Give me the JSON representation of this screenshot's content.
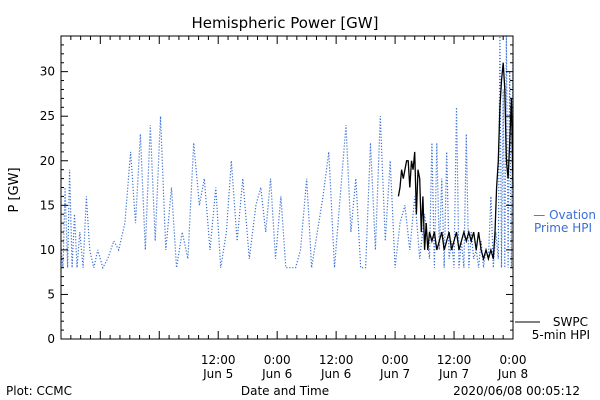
{
  "chart_data": {
    "type": "line",
    "title": "Hemispheric Power [GW]",
    "xlabel": "Date and Time",
    "ylabel": "P [GW]",
    "x_domain": [
      "2020-06-04T04:00",
      "2020-06-08T00:00"
    ],
    "ylim": [
      0,
      34
    ],
    "y_ticks": [
      0,
      5,
      10,
      15,
      20,
      25,
      30
    ],
    "x_ticks": [
      {
        "t": "2020-06-05T12:00",
        "top": "12:00",
        "bottom": "Jun 5"
      },
      {
        "t": "2020-06-06T00:00",
        "top": "0:00",
        "bottom": "Jun 6"
      },
      {
        "t": "2020-06-06T12:00",
        "top": "12:00",
        "bottom": "Jun 6"
      },
      {
        "t": "2020-06-07T00:00",
        "top": "0:00",
        "bottom": "Jun 7"
      },
      {
        "t": "2020-06-07T12:00",
        "top": "12:00",
        "bottom": "Jun 7"
      },
      {
        "t": "2020-06-08T00:00",
        "top": "0:00",
        "bottom": "Jun 8"
      }
    ],
    "grid": false,
    "series": [
      {
        "name": "Ovation Prime HPI",
        "legend_lines": [
          "— Ovation",
          "Prime HPI"
        ],
        "color": "#3a6fd6",
        "style": "dotted",
        "points": [
          [
            "2020-06-04T04:00",
            10
          ],
          [
            "2020-06-04T04:25",
            8
          ],
          [
            "2020-06-04T04:50",
            17
          ],
          [
            "2020-06-04T05:20",
            8
          ],
          [
            "2020-06-04T05:45",
            19
          ],
          [
            "2020-06-04T06:15",
            8
          ],
          [
            "2020-06-04T06:45",
            14
          ],
          [
            "2020-06-04T07:15",
            8
          ],
          [
            "2020-06-04T07:50",
            12
          ],
          [
            "2020-06-04T08:30",
            8
          ],
          [
            "2020-06-04T09:10",
            16
          ],
          [
            "2020-06-04T09:50",
            10
          ],
          [
            "2020-06-04T10:40",
            8
          ],
          [
            "2020-06-04T11:30",
            10
          ],
          [
            "2020-06-04T12:30",
            8
          ],
          [
            "2020-06-04T13:30",
            9
          ],
          [
            "2020-06-04T14:45",
            11
          ],
          [
            "2020-06-04T15:45",
            10
          ],
          [
            "2020-06-04T17:00",
            13
          ],
          [
            "2020-06-04T18:10",
            21
          ],
          [
            "2020-06-04T19:10",
            13
          ],
          [
            "2020-06-04T20:10",
            23
          ],
          [
            "2020-06-04T21:10",
            10
          ],
          [
            "2020-06-04T22:10",
            24
          ],
          [
            "2020-06-04T23:10",
            11
          ],
          [
            "2020-06-05T00:15",
            25
          ],
          [
            "2020-06-05T01:20",
            10
          ],
          [
            "2020-06-05T02:30",
            17
          ],
          [
            "2020-06-05T03:30",
            8
          ],
          [
            "2020-06-05T04:40",
            12
          ],
          [
            "2020-06-05T05:50",
            9
          ],
          [
            "2020-06-05T07:00",
            22
          ],
          [
            "2020-06-05T08:10",
            15
          ],
          [
            "2020-06-05T09:10",
            18
          ],
          [
            "2020-06-05T10:20",
            10
          ],
          [
            "2020-06-05T11:30",
            17
          ],
          [
            "2020-06-05T12:30",
            8
          ],
          [
            "2020-06-05T13:40",
            12
          ],
          [
            "2020-06-05T14:40",
            20
          ],
          [
            "2020-06-05T15:50",
            11
          ],
          [
            "2020-06-05T17:00",
            18
          ],
          [
            "2020-06-05T18:20",
            9
          ],
          [
            "2020-06-05T19:40",
            15
          ],
          [
            "2020-06-05T20:40",
            17
          ],
          [
            "2020-06-05T21:40",
            12
          ],
          [
            "2020-06-05T22:40",
            18
          ],
          [
            "2020-06-05T23:40",
            9
          ],
          [
            "2020-06-06T00:45",
            16
          ],
          [
            "2020-06-06T01:45",
            8
          ],
          [
            "2020-06-06T02:45",
            8
          ],
          [
            "2020-06-06T03:45",
            8
          ],
          [
            "2020-06-06T04:45",
            10
          ],
          [
            "2020-06-06T06:00",
            18
          ],
          [
            "2020-06-06T07:00",
            8
          ],
          [
            "2020-06-06T08:10",
            12
          ],
          [
            "2020-06-06T09:20",
            16
          ],
          [
            "2020-06-06T10:30",
            21
          ],
          [
            "2020-06-06T11:40",
            8
          ],
          [
            "2020-06-06T12:50",
            16
          ],
          [
            "2020-06-06T14:00",
            24
          ],
          [
            "2020-06-06T15:00",
            12
          ],
          [
            "2020-06-06T16:00",
            18
          ],
          [
            "2020-06-06T17:00",
            8
          ],
          [
            "2020-06-06T18:00",
            8
          ],
          [
            "2020-06-06T19:00",
            22
          ],
          [
            "2020-06-06T20:00",
            10
          ],
          [
            "2020-06-06T21:00",
            25
          ],
          [
            "2020-06-06T22:00",
            11
          ],
          [
            "2020-06-06T23:00",
            20
          ],
          [
            "2020-06-07T00:00",
            8
          ],
          [
            "2020-06-07T01:00",
            13
          ],
          [
            "2020-06-07T02:00",
            15
          ],
          [
            "2020-06-07T03:00",
            10
          ],
          [
            "2020-06-07T04:00",
            16
          ],
          [
            "2020-06-07T05:00",
            9
          ],
          [
            "2020-06-07T06:00",
            14
          ],
          [
            "2020-06-07T07:00",
            9
          ],
          [
            "2020-06-07T07:30",
            22
          ],
          [
            "2020-06-07T08:00",
            8
          ],
          [
            "2020-06-07T08:30",
            22
          ],
          [
            "2020-06-07T09:00",
            10
          ],
          [
            "2020-06-07T09:30",
            18
          ],
          [
            "2020-06-07T10:00",
            8
          ],
          [
            "2020-06-07T10:30",
            21
          ],
          [
            "2020-06-07T11:00",
            9
          ],
          [
            "2020-06-07T11:30",
            11
          ],
          [
            "2020-06-07T12:00",
            8
          ],
          [
            "2020-06-07T12:30",
            26
          ],
          [
            "2020-06-07T13:00",
            8
          ],
          [
            "2020-06-07T13:30",
            11
          ],
          [
            "2020-06-07T14:00",
            8
          ],
          [
            "2020-06-07T14:30",
            23
          ],
          [
            "2020-06-07T15:00",
            8
          ],
          [
            "2020-06-07T15:30",
            12
          ],
          [
            "2020-06-07T16:00",
            9
          ],
          [
            "2020-06-07T16:30",
            10
          ],
          [
            "2020-06-07T17:00",
            8
          ],
          [
            "2020-06-07T17:30",
            11
          ],
          [
            "2020-06-07T18:00",
            8
          ],
          [
            "2020-06-07T18:30",
            10
          ],
          [
            "2020-06-07T19:00",
            9
          ],
          [
            "2020-06-07T19:30",
            16
          ],
          [
            "2020-06-07T20:00",
            8
          ],
          [
            "2020-06-07T20:30",
            12
          ],
          [
            "2020-06-07T21:00",
            9
          ],
          [
            "2020-06-07T21:20",
            34
          ],
          [
            "2020-06-07T21:40",
            8
          ],
          [
            "2020-06-07T22:00",
            28
          ],
          [
            "2020-06-07T22:20",
            8
          ],
          [
            "2020-06-07T22:40",
            34
          ],
          [
            "2020-06-07T23:00",
            8
          ],
          [
            "2020-06-07T23:20",
            30
          ],
          [
            "2020-06-07T23:40",
            8
          ],
          [
            "2020-06-08T00:00",
            32
          ]
        ]
      },
      {
        "name": "SWPC 5-min HPI",
        "legend_lines": [
          "SWPC",
          "5-min HPI"
        ],
        "color": "#000000",
        "style": "solid",
        "points": [
          [
            "2020-06-07T00:40",
            16
          ],
          [
            "2020-06-07T01:00",
            17
          ],
          [
            "2020-06-07T01:20",
            19
          ],
          [
            "2020-06-07T01:40",
            18
          ],
          [
            "2020-06-07T02:00",
            19
          ],
          [
            "2020-06-07T02:20",
            20
          ],
          [
            "2020-06-07T02:40",
            20
          ],
          [
            "2020-06-07T03:00",
            17
          ],
          [
            "2020-06-07T03:20",
            20
          ],
          [
            "2020-06-07T03:40",
            19
          ],
          [
            "2020-06-07T04:00",
            21
          ],
          [
            "2020-06-07T04:20",
            14
          ],
          [
            "2020-06-07T04:40",
            19
          ],
          [
            "2020-06-07T05:00",
            18
          ],
          [
            "2020-06-07T05:20",
            12
          ],
          [
            "2020-06-07T05:40",
            16
          ],
          [
            "2020-06-07T06:00",
            10
          ],
          [
            "2020-06-07T06:20",
            13
          ],
          [
            "2020-06-07T06:40",
            10
          ],
          [
            "2020-06-07T07:00",
            12
          ],
          [
            "2020-06-07T07:30",
            11
          ],
          [
            "2020-06-07T08:00",
            12
          ],
          [
            "2020-06-07T08:30",
            10
          ],
          [
            "2020-06-07T09:00",
            11
          ],
          [
            "2020-06-07T09:30",
            12
          ],
          [
            "2020-06-07T10:00",
            10
          ],
          [
            "2020-06-07T10:30",
            11
          ],
          [
            "2020-06-07T11:00",
            12
          ],
          [
            "2020-06-07T11:30",
            10
          ],
          [
            "2020-06-07T12:00",
            11
          ],
          [
            "2020-06-07T12:30",
            12
          ],
          [
            "2020-06-07T13:00",
            10
          ],
          [
            "2020-06-07T13:30",
            11
          ],
          [
            "2020-06-07T14:00",
            12
          ],
          [
            "2020-06-07T14:30",
            11
          ],
          [
            "2020-06-07T15:00",
            12
          ],
          [
            "2020-06-07T15:30",
            11
          ],
          [
            "2020-06-07T16:00",
            12
          ],
          [
            "2020-06-07T16:30",
            10
          ],
          [
            "2020-06-07T17:00",
            12
          ],
          [
            "2020-06-07T17:30",
            10
          ],
          [
            "2020-06-07T18:00",
            9
          ],
          [
            "2020-06-07T18:30",
            10
          ],
          [
            "2020-06-07T19:00",
            9
          ],
          [
            "2020-06-07T19:30",
            10
          ],
          [
            "2020-06-07T20:00",
            9
          ],
          [
            "2020-06-07T20:20",
            12
          ],
          [
            "2020-06-07T20:40",
            17
          ],
          [
            "2020-06-07T21:00",
            20
          ],
          [
            "2020-06-07T21:20",
            26
          ],
          [
            "2020-06-07T21:40",
            29
          ],
          [
            "2020-06-07T22:00",
            31
          ],
          [
            "2020-06-07T22:20",
            28
          ],
          [
            "2020-06-07T22:40",
            20
          ],
          [
            "2020-06-07T23:00",
            18
          ],
          [
            "2020-06-07T23:20",
            22
          ],
          [
            "2020-06-07T23:40",
            27
          ],
          [
            "2020-06-08T00:00",
            17
          ]
        ]
      }
    ]
  },
  "footer": {
    "plot_credit": "Plot: CCMC",
    "timestamp": "2020/06/08 00:05:12"
  }
}
